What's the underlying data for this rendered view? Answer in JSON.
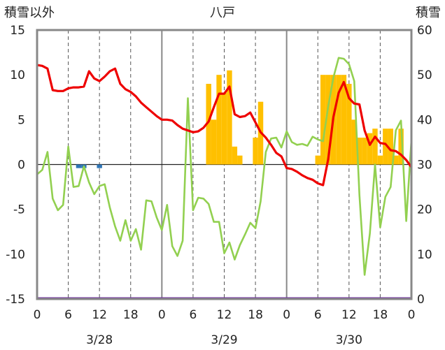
{
  "chart_data": {
    "type": "bar+line",
    "title": "八戸",
    "left_axis": {
      "label": "積雪以外",
      "ylim": [
        -15,
        15
      ],
      "ticks": [
        15,
        10,
        5,
        0,
        -5,
        -10,
        -15
      ]
    },
    "right_axis": {
      "label": "積雪",
      "ylim": [
        0,
        60
      ],
      "ticks": [
        60,
        50,
        40,
        30,
        20,
        10,
        0
      ]
    },
    "x_hour_labels": [
      "0",
      "6",
      "12",
      "18",
      "0",
      "6",
      "12",
      "18",
      "0",
      "6",
      "12",
      "18",
      "0"
    ],
    "date_labels": [
      "3/28",
      "3/29",
      "3/30"
    ],
    "grid": {
      "dashed_every_hours": 6,
      "solid_day_boundaries": true
    },
    "x_hours_range": [
      0,
      72
    ],
    "red_line": {
      "color": "#ee0000",
      "x": [
        0,
        1,
        2,
        3,
        4,
        5,
        6,
        7,
        8,
        9,
        10,
        11,
        12,
        13,
        14,
        15,
        16,
        17,
        18,
        19,
        20,
        21,
        22,
        23,
        24,
        25,
        26,
        27,
        28,
        29,
        30,
        31,
        32,
        33,
        34,
        35,
        36,
        37,
        38,
        39,
        40,
        41,
        42,
        43,
        44,
        45,
        46,
        47,
        48,
        49,
        50,
        51,
        52,
        53,
        54,
        55,
        56,
        57,
        58,
        59,
        60,
        61,
        62,
        63,
        64,
        65,
        66,
        67,
        68,
        69,
        70,
        71,
        72
      ],
      "y": [
        11.1,
        11.0,
        10.7,
        8.3,
        8.2,
        8.2,
        8.5,
        8.6,
        8.6,
        8.7,
        10.4,
        9.6,
        9.3,
        9.8,
        10.4,
        10.7,
        9.0,
        8.4,
        8.1,
        7.6,
        6.9,
        6.4,
        5.9,
        5.4,
        5.0,
        5.0,
        4.9,
        4.4,
        4.0,
        3.8,
        3.6,
        3.7,
        4.1,
        4.8,
        6.4,
        7.9,
        7.9,
        8.7,
        5.6,
        5.3,
        5.4,
        5.8,
        4.7,
        3.6,
        3.0,
        2.2,
        1.3,
        0.9,
        -0.4,
        -0.5,
        -0.8,
        -1.2,
        -1.5,
        -1.7,
        -2.1,
        -2.3,
        0.6,
        5.3,
        8.0,
        9.2,
        7.4,
        6.8,
        6.7,
        3.8,
        2.2,
        3.1,
        2.4,
        2.3,
        1.6,
        1.5,
        1.1,
        0.5,
        -0.3
      ]
    },
    "green_line": {
      "color": "#92d050",
      "x": [
        0,
        1,
        2,
        3,
        4,
        5,
        6,
        7,
        8,
        9,
        10,
        11,
        12,
        13,
        14,
        15,
        16,
        17,
        18,
        19,
        20,
        21,
        22,
        23,
        24,
        25,
        26,
        27,
        28,
        29,
        30,
        31,
        32,
        33,
        34,
        35,
        36,
        37,
        38,
        39,
        40,
        41,
        42,
        43,
        44,
        45,
        46,
        47,
        48,
        49,
        50,
        51,
        52,
        53,
        54,
        55,
        56,
        57,
        58,
        59,
        60,
        61,
        62,
        63,
        64,
        65,
        66,
        67,
        68,
        69,
        70,
        71,
        72
      ],
      "y": [
        -1.1,
        -0.6,
        1.4,
        -3.8,
        -5.1,
        -4.5,
        2.0,
        -2.5,
        -2.4,
        -0.2,
        -2.0,
        -3.3,
        -2.4,
        -2.2,
        -4.8,
        -6.9,
        -8.5,
        -6.2,
        -8.5,
        -7.2,
        -9.5,
        -4.0,
        -4.1,
        -5.9,
        -7.3,
        -4.5,
        -9.1,
        -10.2,
        -8.5,
        7.4,
        -5.1,
        -3.7,
        -3.8,
        -4.4,
        -6.4,
        -6.4,
        -9.9,
        -8.7,
        -10.6,
        -9.0,
        -7.8,
        -6.5,
        -7.1,
        -4.1,
        1.4,
        2.9,
        3.0,
        1.9,
        3.7,
        2.5,
        2.2,
        2.3,
        2.1,
        3.1,
        2.8,
        2.6,
        6.5,
        9.7,
        11.9,
        11.8,
        11.2,
        9.3,
        -3.4,
        -12.3,
        -7.7,
        0.0,
        -7.0,
        -3.6,
        -2.5,
        3.8,
        4.9,
        -6.3,
        2.7
      ]
    },
    "bars_yellow": {
      "color": "#ffc000",
      "axis": "right",
      "x": [
        33,
        34,
        35,
        36,
        37,
        38,
        39,
        42,
        43,
        54,
        55,
        56,
        57,
        58,
        59,
        60,
        61,
        62,
        63,
        64,
        65,
        66,
        67,
        68,
        69,
        70
      ],
      "values": [
        48,
        40,
        50,
        46,
        51,
        34,
        32,
        36,
        44,
        32,
        50,
        50,
        50,
        50,
        50,
        48,
        40,
        36,
        36,
        37,
        38,
        32,
        38,
        38,
        32,
        38
      ]
    },
    "bars_blue": {
      "color": "#2e75b6",
      "axis": "left",
      "x": [
        8,
        9,
        12
      ],
      "values": [
        -0.4,
        -0.4,
        -0.4
      ]
    },
    "purple_baseline": {
      "color": "#7030a0",
      "value": -15
    }
  }
}
